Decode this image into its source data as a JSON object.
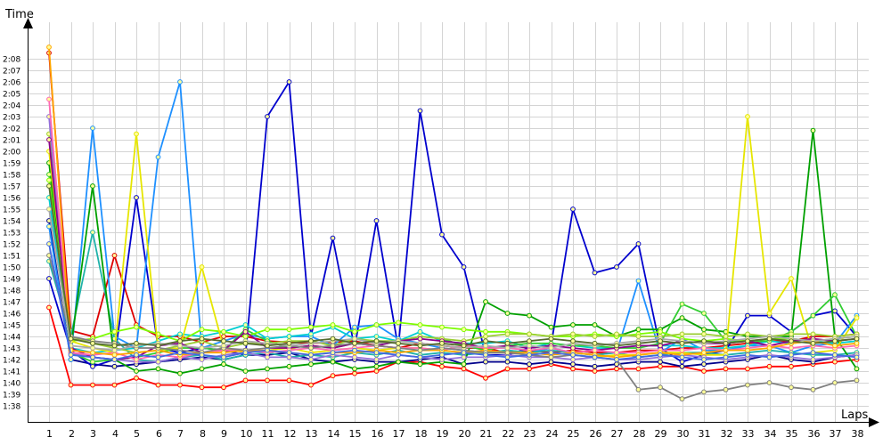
{
  "chart_data": {
    "type": "line",
    "xlabel": "Laps",
    "ylabel": "Time",
    "x_range": [
      1,
      38
    ],
    "y_range_seconds": [
      96,
      130
    ],
    "grid": true,
    "legend": "none",
    "x_ticks": [
      "1",
      "2",
      "3",
      "4",
      "5",
      "6",
      "7",
      "8",
      "9",
      "10",
      "11",
      "12",
      "13",
      "14",
      "15",
      "16",
      "17",
      "18",
      "19",
      "20",
      "21",
      "22",
      "23",
      "24",
      "25",
      "26",
      "27",
      "28",
      "29",
      "30",
      "31",
      "32",
      "33",
      "34",
      "35",
      "36",
      "37",
      "38"
    ],
    "y_ticks": [
      "1:38",
      "1:39",
      "1:40",
      "1:41",
      "1:42",
      "1:43",
      "1:44",
      "1:45",
      "1:46",
      "1:47",
      "1:48",
      "1:49",
      "1:50",
      "1:51",
      "1:52",
      "1:53",
      "1:54",
      "1:55",
      "1:56",
      "1:57",
      "1:58",
      "1:59",
      "2:00",
      "2:01",
      "2:02",
      "2:03",
      "2:04",
      "2:05",
      "2:06",
      "2:07",
      "2:08"
    ],
    "series": [
      {
        "color": "#ff0000",
        "values": [
          106.5,
          99.8,
          99.8,
          99.8,
          100.4,
          99.8,
          99.8,
          99.6,
          99.6,
          100.2,
          100.2,
          100.2,
          99.8,
          100.6,
          100.8,
          101.0,
          101.8,
          101.8,
          101.4,
          101.2,
          100.4,
          101.2,
          101.2,
          101.6,
          101.2,
          101.0,
          101.2,
          101.2,
          101.4,
          101.4,
          101.0,
          101.2,
          101.2,
          101.4,
          101.4,
          101.6,
          101.8,
          102.0
        ]
      },
      {
        "color": "#dd0000",
        "values": [
          128.5,
          104.5,
          104.0,
          111.0,
          105.0,
          104.0,
          104.0,
          103.5,
          104.0,
          104.0,
          103.6,
          103.5,
          103.4,
          103.5,
          103.6,
          103.2,
          103.0,
          103.4,
          103.2,
          103.0,
          103.0,
          102.6,
          102.8,
          102.6,
          102.8,
          102.6,
          102.6,
          102.8,
          102.8,
          103.0,
          103.0,
          103.2,
          103.4,
          103.6,
          103.6,
          104.0,
          104.0,
          104.2
        ]
      },
      {
        "color": "#00008b",
        "values": [
          114.0,
          102.0,
          101.6,
          101.4,
          101.6,
          101.8,
          102.0,
          102.2,
          102.0,
          102.4,
          102.4,
          102.6,
          102.0,
          101.8,
          102.0,
          101.8,
          101.8,
          102.0,
          102.2,
          101.6,
          101.8,
          101.8,
          101.6,
          101.8,
          101.6,
          101.4,
          101.6,
          101.8,
          101.8,
          101.4,
          101.6,
          101.8,
          102.0,
          102.4,
          102.0,
          101.8,
          102.2,
          102.4
        ]
      },
      {
        "color": "#0000cd",
        "values": [
          109.0,
          102.8,
          101.4,
          102.0,
          116.0,
          103.0,
          102.6,
          103.0,
          102.8,
          102.4,
          123.0,
          126.0,
          104.0,
          112.5,
          103.0,
          114.0,
          103.0,
          123.5,
          112.8,
          110.0,
          102.4,
          102.4,
          103.0,
          103.2,
          115.0,
          109.5,
          110.0,
          112.0,
          103.0,
          101.8,
          102.4,
          102.8,
          105.8,
          105.8,
          104.4,
          105.8,
          106.2,
          104.0
        ]
      },
      {
        "color": "#1e90ff",
        "values": [
          113.5,
          102.0,
          122.0,
          104.0,
          103.0,
          119.5,
          126.0,
          103.0,
          103.6,
          104.2,
          103.8,
          104.0,
          104.0,
          103.2,
          104.8,
          105.0,
          103.8,
          103.4,
          103.0,
          102.8,
          102.6,
          102.8,
          102.6,
          103.0,
          102.6,
          102.4,
          102.6,
          108.8,
          102.6,
          103.8,
          102.8,
          102.8,
          103.2,
          103.2,
          102.6,
          103.2,
          103.4,
          105.8
        ]
      },
      {
        "color": "#00ced1",
        "values": [
          116.0,
          103.0,
          102.6,
          102.8,
          103.0,
          103.6,
          104.2,
          104.0,
          104.4,
          105.0,
          103.8,
          104.0,
          104.2,
          104.8,
          103.8,
          104.0,
          103.6,
          104.4,
          103.6,
          103.4,
          103.4,
          103.6,
          103.0,
          103.4,
          103.2,
          103.0,
          103.0,
          103.2,
          103.2,
          103.2,
          103.0,
          103.0,
          103.2,
          103.6,
          103.4,
          103.6,
          103.4,
          103.6
        ]
      },
      {
        "color": "#20b2aa",
        "values": [
          110.5,
          104.0,
          113.0,
          103.8,
          102.0,
          101.8,
          102.2,
          102.4,
          102.0,
          102.4,
          102.6,
          102.2,
          102.4,
          102.2,
          102.6,
          102.4,
          102.8,
          102.4,
          102.6,
          102.4,
          102.6,
          102.8,
          102.6,
          102.8,
          102.6,
          102.4,
          102.6,
          102.2,
          102.4,
          102.6,
          102.6,
          102.4,
          102.6,
          102.8,
          102.6,
          102.4,
          102.4,
          102.6
        ]
      },
      {
        "color": "#00a000",
        "values": [
          119.0,
          103.0,
          117.0,
          102.0,
          101.0,
          101.2,
          100.8,
          101.2,
          101.6,
          101.0,
          101.2,
          101.4,
          101.6,
          101.8,
          101.2,
          101.4,
          101.8,
          101.6,
          101.8,
          101.6,
          107.0,
          106.0,
          105.8,
          104.8,
          105.0,
          105.0,
          104.0,
          104.6,
          104.6,
          105.6,
          104.6,
          104.4,
          104.0,
          104.0,
          104.0,
          121.8,
          104.0,
          101.2
        ]
      },
      {
        "color": "#32cd32",
        "values": [
          118.0,
          102.6,
          101.8,
          102.0,
          102.2,
          102.6,
          103.0,
          103.0,
          102.8,
          104.6,
          103.6,
          103.0,
          103.2,
          103.0,
          103.4,
          103.2,
          103.6,
          104.0,
          103.8,
          103.2,
          102.8,
          103.2,
          103.4,
          103.4,
          103.2,
          103.2,
          103.0,
          103.0,
          103.4,
          106.8,
          106.0,
          103.6,
          103.6,
          103.6,
          104.4,
          105.8,
          107.6,
          104.0
        ]
      },
      {
        "color": "#7cfc00",
        "values": [
          117.5,
          103.6,
          103.8,
          104.4,
          104.8,
          104.2,
          103.6,
          104.6,
          104.4,
          104.0,
          104.6,
          104.6,
          104.8,
          105.0,
          104.4,
          105.0,
          105.2,
          105.0,
          104.8,
          104.6,
          104.4,
          104.4,
          104.2,
          104.0,
          104.0,
          104.2,
          104.0,
          104.2,
          104.4,
          103.8,
          103.6,
          103.8,
          103.6,
          103.8,
          103.8,
          103.6,
          103.8,
          104.0
        ]
      },
      {
        "color": "#e6e600",
        "values": [
          120.0,
          103.6,
          103.0,
          102.6,
          121.5,
          102.8,
          103.0,
          110.0,
          103.0,
          102.6,
          102.8,
          103.0,
          102.6,
          102.8,
          103.0,
          102.8,
          103.0,
          103.0,
          102.8,
          102.6,
          102.6,
          102.6,
          102.4,
          102.6,
          102.4,
          102.2,
          102.4,
          102.4,
          102.6,
          102.6,
          102.4,
          102.4,
          123.0,
          106.0,
          109.0,
          102.6,
          102.8,
          105.6
        ]
      },
      {
        "color": "#9acd32",
        "values": [
          121.5,
          104.0,
          103.4,
          103.0,
          102.6,
          102.8,
          103.2,
          103.6,
          103.0,
          103.4,
          103.4,
          103.6,
          103.6,
          103.2,
          103.8,
          103.6,
          103.6,
          104.0,
          103.8,
          103.6,
          104.0,
          104.2,
          104.2,
          104.0,
          104.2,
          104.0,
          104.2,
          104.0,
          104.0,
          104.2,
          104.2,
          104.0,
          104.2,
          104.0,
          104.2,
          104.2,
          104.0,
          104.2
        ]
      },
      {
        "color": "#9370db",
        "values": [
          123.0,
          102.6,
          102.2,
          102.0,
          101.8,
          101.8,
          102.2,
          102.0,
          102.4,
          102.6,
          102.2,
          102.2,
          102.0,
          102.4,
          102.2,
          102.0,
          102.4,
          102.2,
          102.0,
          102.2,
          102.2,
          102.4,
          102.2,
          102.2,
          102.0,
          102.2,
          102.0,
          102.0,
          102.2,
          102.4,
          102.2,
          102.0,
          102.2,
          102.4,
          102.2,
          102.0,
          102.2,
          102.4
        ]
      },
      {
        "color": "#8b008b",
        "values": [
          121.0,
          103.0,
          102.2,
          102.0,
          102.2,
          103.2,
          103.4,
          102.6,
          102.8,
          104.4,
          103.0,
          103.0,
          103.2,
          103.0,
          103.4,
          103.2,
          103.6,
          103.8,
          103.6,
          103.4,
          103.0,
          103.2,
          103.0,
          103.2,
          103.0,
          102.8,
          103.0,
          103.2,
          103.2,
          103.6,
          103.4,
          103.4,
          103.6,
          103.2,
          103.6,
          103.8,
          103.6,
          103.8
        ]
      },
      {
        "color": "#ff69b4",
        "values": [
          124.5,
          102.6,
          102.4,
          102.6,
          102.0,
          102.4,
          102.2,
          102.6,
          102.8,
          102.8,
          102.6,
          102.8,
          103.0,
          102.8,
          103.0,
          103.2,
          103.0,
          103.0,
          102.8,
          103.2,
          103.0,
          103.0,
          102.8,
          103.0,
          102.6,
          102.8,
          102.6,
          102.6,
          102.8,
          102.8,
          103.0,
          102.8,
          103.0,
          103.2,
          103.0,
          103.2,
          103.0,
          103.2
        ]
      },
      {
        "color": "#ffa500",
        "values": [
          129.0,
          102.8,
          102.6,
          102.4,
          102.6,
          102.8,
          102.4,
          102.6,
          102.6,
          102.8,
          102.8,
          102.6,
          102.4,
          102.6,
          102.6,
          102.8,
          102.6,
          102.8,
          102.8,
          102.6,
          102.8,
          102.6,
          102.6,
          102.4,
          102.6,
          102.4,
          102.2,
          102.4,
          102.6,
          102.4,
          102.6,
          102.8,
          102.8,
          103.0,
          103.4,
          103.6,
          103.2,
          103.4
        ]
      },
      {
        "color": "#808080",
        "values": [
          111.0,
          104.0,
          103.6,
          103.4,
          103.0,
          103.0,
          102.8,
          102.6,
          103.0,
          102.8,
          103.0,
          103.2,
          103.0,
          103.2,
          103.4,
          103.2,
          103.0,
          102.8,
          103.0,
          102.8,
          102.6,
          102.6,
          102.4,
          102.2,
          102.4,
          102.2,
          102.0,
          99.4,
          99.6,
          98.6,
          99.2,
          99.4,
          99.8,
          100.0,
          99.6,
          99.4,
          100.0,
          100.2
        ]
      },
      {
        "color": "#a9a9a9",
        "values": [
          115.0,
          103.2,
          103.0,
          102.8,
          103.2,
          103.4,
          103.2,
          103.0,
          103.2,
          103.6,
          103.4,
          103.2,
          103.4,
          103.6,
          103.8,
          103.4,
          103.6,
          103.4,
          103.2,
          103.0,
          103.2,
          103.0,
          103.2,
          103.0,
          103.4,
          103.2,
          103.4,
          103.6,
          103.8,
          103.6,
          103.4,
          103.6,
          103.8,
          104.0,
          103.8,
          103.6,
          103.8,
          104.0
        ]
      },
      {
        "color": "#556b2f",
        "values": [
          117.0,
          103.8,
          103.4,
          103.2,
          103.4,
          103.2,
          103.6,
          103.8,
          103.6,
          103.4,
          103.2,
          103.4,
          103.6,
          103.8,
          103.4,
          103.6,
          103.4,
          103.2,
          103.4,
          103.2,
          103.6,
          103.4,
          103.6,
          103.8,
          103.6,
          103.4,
          103.2,
          103.4,
          103.6,
          103.4,
          103.6,
          103.4,
          103.6,
          103.8,
          103.6,
          103.4,
          103.6,
          103.8
        ]
      },
      {
        "color": "#4169e1",
        "values": [
          112.0,
          102.4,
          102.2,
          102.0,
          102.4,
          102.2,
          102.6,
          102.4,
          102.2,
          102.6,
          102.8,
          102.6,
          102.4,
          102.6,
          102.8,
          102.6,
          102.4,
          102.2,
          102.4,
          102.6,
          102.4,
          102.2,
          102.4,
          102.6,
          102.4,
          102.2,
          102.0,
          102.2,
          102.4,
          102.2,
          102.0,
          102.2,
          102.4,
          102.2,
          102.4,
          102.6,
          102.4,
          102.2
        ]
      }
    ]
  }
}
